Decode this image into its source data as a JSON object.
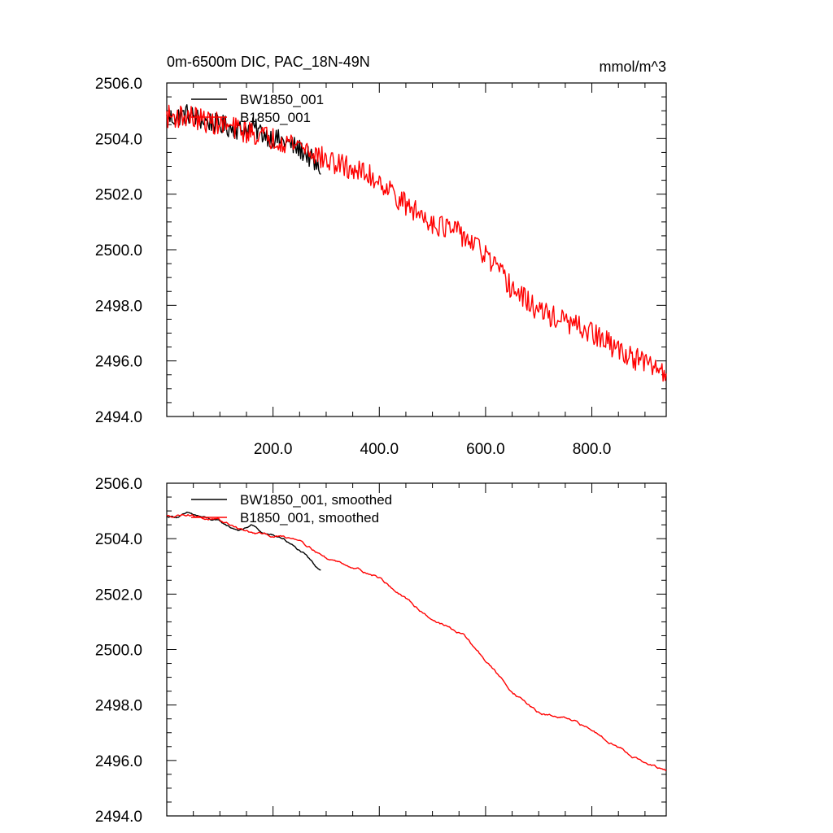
{
  "chart_data": [
    {
      "type": "line",
      "title": "0m-6500m DIC, PAC_18N-49N",
      "units": "mmol/m^3",
      "xlim": [
        0,
        940
      ],
      "ylim": [
        2494.0,
        2506.0
      ],
      "x_ticks": [
        200,
        400,
        600,
        800
      ],
      "x_tick_labels": [
        "200.0",
        "400.0",
        "600.0",
        "800.0"
      ],
      "y_ticks": [
        2494,
        2496,
        2498,
        2500,
        2502,
        2504,
        2506
      ],
      "y_tick_labels": [
        "2494.0",
        "2496.0",
        "2498.0",
        "2500.0",
        "2502.0",
        "2504.0",
        "2506.0"
      ],
      "legend_position": "top-left",
      "series": [
        {
          "name": "BW1850_001",
          "color": "#000000",
          "noise": 0.38,
          "x": [
            0,
            20,
            40,
            60,
            80,
            100,
            120,
            140,
            160,
            180,
            200,
            220,
            240,
            260,
            270,
            280,
            290
          ],
          "y": [
            2504.7,
            2504.8,
            2504.9,
            2504.7,
            2504.6,
            2504.5,
            2504.4,
            2504.3,
            2504.4,
            2504.2,
            2504.0,
            2503.9,
            2503.7,
            2503.5,
            2503.3,
            2503.0,
            2502.9
          ]
        },
        {
          "name": "B1850_001",
          "color": "#ff0000",
          "noise": 0.42,
          "x": [
            0,
            40,
            80,
            120,
            160,
            200,
            250,
            300,
            350,
            400,
            450,
            500,
            560,
            600,
            650,
            700,
            750,
            800,
            850,
            900,
            940
          ],
          "y": [
            2504.8,
            2504.8,
            2504.6,
            2504.4,
            2504.2,
            2504.0,
            2503.8,
            2503.2,
            2502.9,
            2502.5,
            2501.6,
            2501.0,
            2500.5,
            2499.8,
            2498.6,
            2497.8,
            2497.4,
            2497.0,
            2496.4,
            2495.9,
            2495.6
          ]
        }
      ]
    },
    {
      "type": "line",
      "title": "",
      "xlim": [
        0,
        940
      ],
      "ylim": [
        2494.0,
        2506.0
      ],
      "x_ticks": [
        200,
        400,
        600,
        800
      ],
      "y_ticks": [
        2494,
        2496,
        2498,
        2500,
        2502,
        2504,
        2506
      ],
      "y_tick_labels": [
        "2494.0",
        "2496.0",
        "2498.0",
        "2500.0",
        "2502.0",
        "2504.0",
        "2506.0"
      ],
      "legend_position": "top-left",
      "series": [
        {
          "name": "BW1850_001, smoothed",
          "color": "#000000",
          "noise": 0.08,
          "x": [
            0,
            20,
            40,
            60,
            80,
            100,
            120,
            140,
            160,
            180,
            200,
            220,
            240,
            260,
            270,
            280,
            290
          ],
          "y": [
            2504.8,
            2504.8,
            2504.9,
            2504.8,
            2504.7,
            2504.6,
            2504.4,
            2504.3,
            2504.5,
            2504.2,
            2504.1,
            2504.0,
            2503.7,
            2503.4,
            2503.2,
            2503.0,
            2502.9
          ]
        },
        {
          "name": "B1850_001, smoothed",
          "color": "#ff0000",
          "noise": 0.09,
          "x": [
            0,
            40,
            80,
            120,
            160,
            200,
            250,
            300,
            350,
            400,
            450,
            500,
            560,
            600,
            650,
            700,
            750,
            800,
            850,
            900,
            940
          ],
          "y": [
            2504.8,
            2504.9,
            2504.7,
            2504.5,
            2504.2,
            2504.1,
            2504.0,
            2503.3,
            2503.0,
            2502.6,
            2501.8,
            2501.1,
            2500.5,
            2499.6,
            2498.5,
            2497.7,
            2497.5,
            2497.1,
            2496.5,
            2495.9,
            2495.6
          ]
        }
      ]
    }
  ]
}
